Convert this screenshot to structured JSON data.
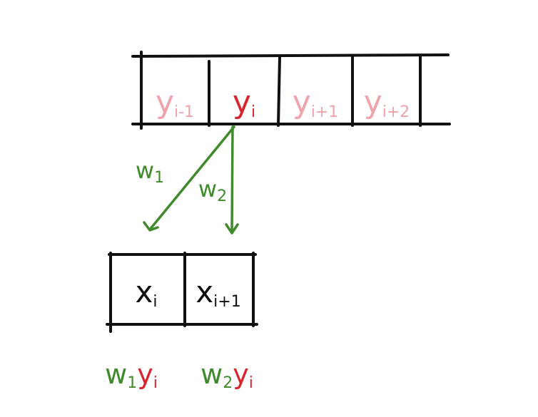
{
  "output_array": {
    "cells": [
      {
        "main": "y",
        "sub": "i-1",
        "style": "faded"
      },
      {
        "main": "y",
        "sub": "i",
        "style": "active"
      },
      {
        "main": "y",
        "sub": "i+1",
        "style": "faded"
      },
      {
        "main": "y",
        "sub": "i+2",
        "style": "faded"
      }
    ]
  },
  "weights": {
    "w1": {
      "main": "w",
      "sub": "1"
    },
    "w2": {
      "main": "w",
      "sub": "2"
    }
  },
  "input_array": {
    "cells": [
      {
        "main": "x",
        "sub": "i"
      },
      {
        "main": "x",
        "sub": "i+1"
      }
    ]
  },
  "results": [
    {
      "w_main": "w",
      "w_sub": "1",
      "y_main": "y",
      "y_sub": "i"
    },
    {
      "w_main": "w",
      "w_sub": "2",
      "y_main": "y",
      "y_sub": "i"
    }
  ],
  "colors": {
    "ink": "#111111",
    "active": "#d8242c",
    "faded": "#f0a3aa",
    "weight": "#3f8a2a"
  }
}
